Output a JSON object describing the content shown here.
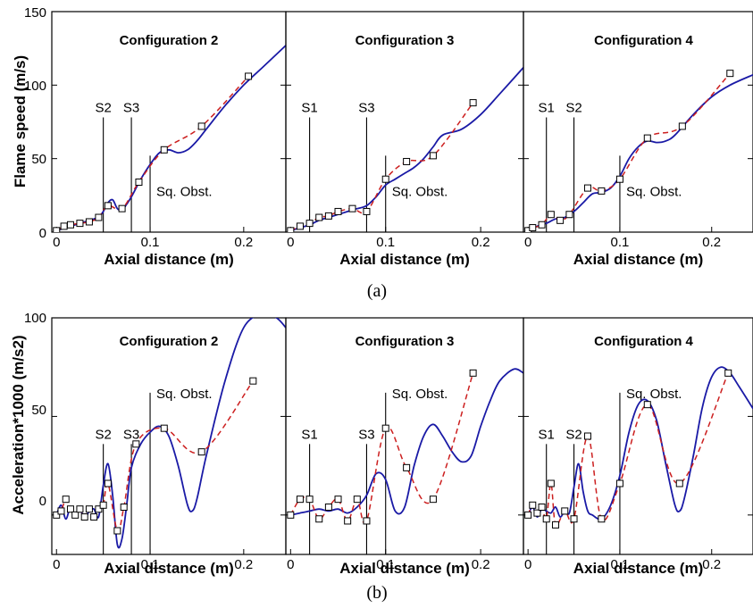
{
  "figure": {
    "label_a": "(a)",
    "label_b": "(b)"
  },
  "chart_data": [
    {
      "id": "a",
      "type": "line",
      "ylabel": "Flame speed (m/s)",
      "xlabel": "Axial distance (m)",
      "ylim": [
        0,
        150
      ],
      "xlim": [
        -0.005,
        0.245
      ],
      "yticks": [
        "0",
        "50",
        "100",
        "150"
      ],
      "xticks": [
        "0",
        "0.1",
        "0.2"
      ],
      "panels": [
        {
          "title": "Configuration 2",
          "markers": [
            {
              "label": "S2",
              "x": 0.05,
              "top": 78
            },
            {
              "label": "S3",
              "x": 0.08,
              "top": 78
            },
            {
              "label": "Sq. Obst.",
              "x": 0.1,
              "top": 52
            }
          ],
          "simulation": {
            "x": [
              0,
              0.01,
              0.02,
              0.03,
              0.04,
              0.045,
              0.05,
              0.055,
              0.06,
              0.065,
              0.07,
              0.075,
              0.08,
              0.085,
              0.09,
              0.1,
              0.11,
              0.12,
              0.13,
              0.14,
              0.15,
              0.16,
              0.18,
              0.2,
              0.22,
              0.245
            ],
            "y": [
              1,
              3,
              5,
              7,
              9,
              10,
              14,
              20,
              22,
              16,
              15,
              19,
              24,
              30,
              36,
              46,
              54,
              56,
              54,
              56,
              62,
              70,
              86,
              100,
              112,
              127
            ]
          },
          "experiment": {
            "x": [
              0,
              0.008,
              0.015,
              0.025,
              0.035,
              0.045,
              0.055,
              0.07,
              0.088,
              0.115,
              0.155,
              0.205
            ],
            "y": [
              1,
              4,
              5,
              6,
              7,
              10,
              18,
              16,
              34,
              56,
              72,
              106
            ]
          }
        },
        {
          "title": "Configuration 3",
          "markers": [
            {
              "label": "S1",
              "x": 0.02,
              "top": 78
            },
            {
              "label": "S3",
              "x": 0.08,
              "top": 78
            },
            {
              "label": "Sq. Obst.",
              "x": 0.1,
              "top": 52
            }
          ],
          "simulation": {
            "x": [
              0,
              0.01,
              0.02,
              0.03,
              0.04,
              0.05,
              0.06,
              0.07,
              0.08,
              0.09,
              0.1,
              0.11,
              0.12,
              0.13,
              0.14,
              0.15,
              0.16,
              0.18,
              0.2,
              0.22,
              0.245
            ],
            "y": [
              1,
              3,
              5,
              8,
              10,
              12,
              14,
              16,
              18,
              24,
              32,
              36,
              40,
              44,
              50,
              58,
              66,
              70,
              80,
              94,
              112
            ]
          },
          "experiment": {
            "x": [
              0,
              0.01,
              0.02,
              0.03,
              0.04,
              0.05,
              0.065,
              0.08,
              0.1,
              0.122,
              0.15,
              0.192
            ],
            "y": [
              1,
              4,
              6,
              10,
              11,
              14,
              16,
              14,
              36,
              48,
              52,
              88
            ]
          }
        },
        {
          "title": "Configuration 4",
          "markers": [
            {
              "label": "S1",
              "x": 0.02,
              "top": 78
            },
            {
              "label": "S2",
              "x": 0.05,
              "top": 78
            },
            {
              "label": "Sq. Obst.",
              "x": 0.1,
              "top": 52
            }
          ],
          "simulation": {
            "x": [
              0,
              0.01,
              0.02,
              0.03,
              0.04,
              0.05,
              0.06,
              0.07,
              0.08,
              0.09,
              0.1,
              0.11,
              0.12,
              0.13,
              0.14,
              0.15,
              0.16,
              0.18,
              0.2,
              0.22,
              0.245
            ],
            "y": [
              1,
              4,
              6,
              9,
              10,
              14,
              20,
              26,
              27,
              30,
              38,
              50,
              58,
              62,
              61,
              62,
              66,
              80,
              92,
              100,
              107
            ]
          },
          "experiment": {
            "x": [
              0,
              0.005,
              0.015,
              0.025,
              0.035,
              0.045,
              0.065,
              0.08,
              0.1,
              0.13,
              0.168,
              0.22
            ],
            "y": [
              1,
              3,
              5,
              12,
              8,
              12,
              30,
              28,
              36,
              64,
              72,
              108
            ]
          }
        }
      ]
    },
    {
      "id": "b",
      "type": "line",
      "ylabel": "Acceleration*1000 (m/s2)",
      "xlabel": "Axial distance (m)",
      "ylim": [
        -20,
        100
      ],
      "xlim": [
        -0.005,
        0.245
      ],
      "yticks": [
        "0",
        "50",
        "100"
      ],
      "yticks_vals": [
        0,
        50,
        100
      ],
      "xticks": [
        "0",
        "0.1",
        "0.2"
      ],
      "panels": [
        {
          "title": "Configuration 2",
          "markers": [
            {
              "label": "S2",
              "x": 0.05,
              "top": 36
            },
            {
              "label": "S3",
              "x": 0.08,
              "top": 36
            },
            {
              "label": "Sq. Obst.",
              "x": 0.1,
              "top": 62
            }
          ],
          "simulation": {
            "x": [
              0,
              0.005,
              0.01,
              0.015,
              0.02,
              0.025,
              0.03,
              0.035,
              0.04,
              0.045,
              0.05,
              0.055,
              0.06,
              0.065,
              0.07,
              0.075,
              0.08,
              0.09,
              0.1,
              0.11,
              0.12,
              0.13,
              0.14,
              0.145,
              0.15,
              0.16,
              0.18,
              0.2,
              0.22,
              0.235,
              0.245
            ],
            "y": [
              0,
              5,
              -2,
              4,
              0,
              3,
              -2,
              2,
              3,
              -1,
              15,
              26,
              10,
              -15,
              -12,
              5,
              24,
              36,
              42,
              45,
              40,
              25,
              5,
              2,
              8,
              30,
              68,
              95,
              102,
              100,
              95
            ]
          },
          "experiment": {
            "x": [
              0,
              0.005,
              0.01,
              0.015,
              0.02,
              0.025,
              0.03,
              0.035,
              0.04,
              0.045,
              0.05,
              0.055,
              0.065,
              0.072,
              0.085,
              0.115,
              0.155,
              0.21
            ],
            "y": [
              0,
              2,
              8,
              3,
              0,
              3,
              -1,
              3,
              -1,
              3,
              5,
              16,
              -8,
              4,
              36,
              44,
              32,
              68
            ]
          }
        },
        {
          "title": "Configuration 3",
          "markers": [
            {
              "label": "S1",
              "x": 0.02,
              "top": 36
            },
            {
              "label": "S3",
              "x": 0.08,
              "top": 36
            },
            {
              "label": "Sq. Obst.",
              "x": 0.1,
              "top": 62
            }
          ],
          "simulation": {
            "x": [
              0,
              0.01,
              0.02,
              0.03,
              0.04,
              0.05,
              0.06,
              0.07,
              0.08,
              0.09,
              0.1,
              0.11,
              0.12,
              0.13,
              0.14,
              0.15,
              0.16,
              0.17,
              0.18,
              0.19,
              0.2,
              0.21,
              0.22,
              0.235,
              0.245
            ],
            "y": [
              0,
              1,
              2,
              3,
              2,
              3,
              1,
              4,
              10,
              21,
              18,
              2,
              4,
              25,
              40,
              46,
              40,
              32,
              27,
              30,
              45,
              58,
              68,
              74,
              72
            ]
          },
          "experiment": {
            "x": [
              0,
              0.01,
              0.02,
              0.03,
              0.04,
              0.05,
              0.06,
              0.07,
              0.08,
              0.1,
              0.122,
              0.15,
              0.192
            ],
            "y": [
              0,
              8,
              8,
              -2,
              4,
              8,
              -3,
              8,
              -3,
              44,
              24,
              8,
              72
            ]
          }
        },
        {
          "title": "Configuration 4",
          "markers": [
            {
              "label": "S1",
              "x": 0.02,
              "top": 36
            },
            {
              "label": "S2",
              "x": 0.05,
              "top": 36
            },
            {
              "label": "Sq. Obst.",
              "x": 0.1,
              "top": 62
            }
          ],
          "simulation": {
            "x": [
              0,
              0.005,
              0.01,
              0.015,
              0.02,
              0.025,
              0.03,
              0.035,
              0.04,
              0.045,
              0.05,
              0.055,
              0.06,
              0.065,
              0.07,
              0.08,
              0.09,
              0.1,
              0.11,
              0.12,
              0.13,
              0.14,
              0.15,
              0.16,
              0.165,
              0.17,
              0.18,
              0.19,
              0.2,
              0.21,
              0.22,
              0.23,
              0.245
            ],
            "y": [
              0,
              4,
              -1,
              3,
              2,
              1,
              4,
              -1,
              2,
              1,
              14,
              26,
              12,
              2,
              0,
              -2,
              5,
              20,
              42,
              56,
              58,
              48,
              26,
              5,
              2,
              8,
              30,
              55,
              70,
              75,
              72,
              65,
              54
            ]
          },
          "experiment": {
            "x": [
              0,
              0.005,
              0.01,
              0.015,
              0.02,
              0.025,
              0.03,
              0.04,
              0.05,
              0.065,
              0.08,
              0.1,
              0.13,
              0.165,
              0.218
            ],
            "y": [
              0,
              5,
              1,
              4,
              -2,
              16,
              -5,
              2,
              -2,
              40,
              -2,
              16,
              56,
              16,
              72
            ]
          }
        }
      ]
    }
  ]
}
